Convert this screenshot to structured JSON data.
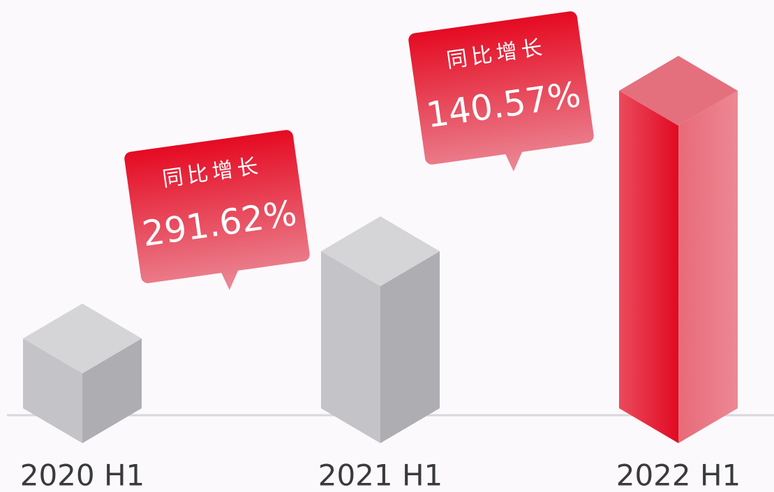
{
  "chart_data": {
    "type": "bar3d",
    "categories": [
      "2020 H1",
      "2021 H1",
      "2022 H1"
    ],
    "values": [
      100,
      225,
      455
    ],
    "colors": [
      "#c4c3c7",
      "#c4c3c7",
      "#e4192f"
    ],
    "annotations": [
      {
        "text": "同比增长",
        "value": 291.62,
        "value_label": "291.62%"
      },
      {
        "text": "同比增长",
        "value": 140.57,
        "value_label": "140.57%"
      }
    ]
  }
}
